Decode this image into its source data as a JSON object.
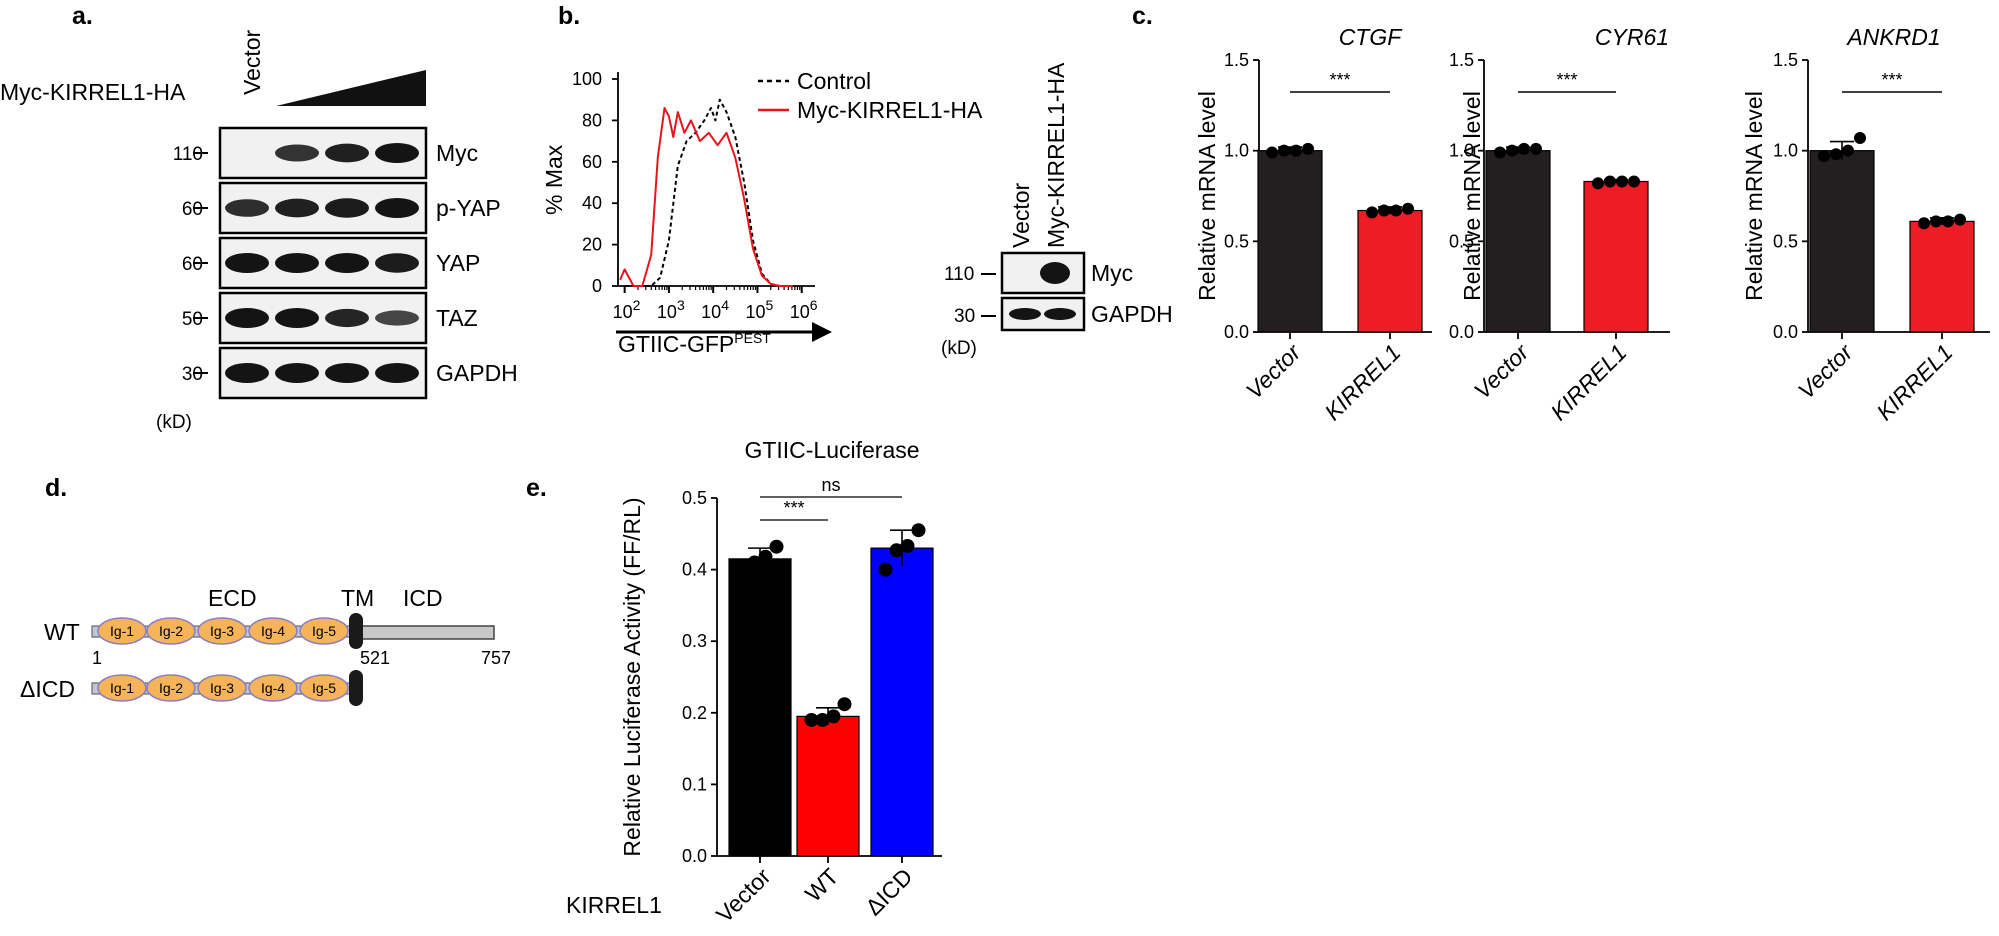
{
  "panels": {
    "a": {
      "label": "a.",
      "construct": "Myc-KIRREL1-HA",
      "vector": "Vector",
      "mw_unit": "(kD)",
      "rows": [
        {
          "mw": "110",
          "name": "Myc",
          "intensity": [
            0,
            0.75,
            0.9,
            1.0
          ]
        },
        {
          "mw": "60",
          "name": "p-YAP",
          "intensity": [
            0.8,
            0.9,
            0.95,
            1.0
          ]
        },
        {
          "mw": "60",
          "name": "YAP",
          "intensity": [
            1.0,
            1.0,
            1.0,
            0.95
          ]
        },
        {
          "mw": "50",
          "name": "TAZ",
          "intensity": [
            1.0,
            1.0,
            0.85,
            0.6
          ]
        },
        {
          "mw": "30",
          "name": "GAPDH",
          "intensity": [
            1.0,
            1.0,
            1.0,
            1.0
          ]
        }
      ]
    },
    "b": {
      "label": "b.",
      "ylabel": "% Max",
      "xlabel": "GTIIC-GFP",
      "xlabel_sup": "PEST",
      "legend": [
        "Control",
        "Myc-KIRREL1-HA"
      ],
      "yticks": [
        "0",
        "20",
        "40",
        "60",
        "80",
        "100"
      ],
      "xticks": [
        "10",
        "10",
        "10",
        "10",
        "10"
      ],
      "xticks_exp": [
        "2",
        "3",
        "4",
        "5",
        "6"
      ],
      "blot": {
        "lanes": [
          "Vector",
          "Myc-KIRREL1-HA"
        ],
        "rows": [
          {
            "mw": "110",
            "name": "Myc"
          },
          {
            "mw": "30",
            "name": "GAPDH"
          }
        ],
        "mw_unit": "(kD)"
      }
    },
    "c": {
      "label": "c."
    },
    "d": {
      "label": "d.",
      "wt": "WT",
      "dicd": "ΔICD",
      "domains": [
        "Ig-1",
        "Ig-2",
        "Ig-3",
        "Ig-4",
        "Ig-5"
      ],
      "ecd": "ECD",
      "tm": "TM",
      "icd": "ICD",
      "pos_start": "1",
      "pos_tm": "521",
      "pos_end": "757"
    },
    "e": {
      "label": "e.",
      "group_label": "KIRREL1"
    }
  },
  "colors": {
    "black_bar": "#231f20",
    "red_bar": "#ee1c25",
    "blue_bar": "#0000ff",
    "flow_red": "#e8141b",
    "ig_fill": "#f5b35a",
    "ig_stroke": "#8a7fbf"
  },
  "chart_data": [
    {
      "type": "line",
      "panel": "b",
      "title": "",
      "xlabel": "GTIIC-GFPPEST",
      "ylabel": "% Max",
      "x_scale": "log10",
      "xlim_log10": [
        1.85,
        6.3
      ],
      "ylim": [
        0,
        100
      ],
      "series": [
        {
          "name": "Control",
          "style": "dashed",
          "color": "#000000",
          "x_log10": [
            2.0,
            2.6,
            2.8,
            3.0,
            3.2,
            3.4,
            3.6,
            3.8,
            3.95,
            4.05,
            4.15,
            4.3,
            4.5,
            4.7,
            4.9,
            5.1,
            5.3,
            5.5,
            5.8
          ],
          "y": [
            0,
            0,
            4,
            22,
            58,
            70,
            74,
            80,
            86,
            80,
            90,
            84,
            72,
            50,
            22,
            6,
            1,
            0,
            0
          ]
        },
        {
          "name": "Myc-KIRREL1-HA",
          "style": "solid",
          "color": "#e8141b",
          "x_log10": [
            1.9,
            2.0,
            2.2,
            2.4,
            2.6,
            2.75,
            2.9,
            3.0,
            3.1,
            3.2,
            3.35,
            3.5,
            3.7,
            3.9,
            4.1,
            4.3,
            4.5,
            4.7,
            4.9,
            5.1,
            5.3,
            5.5,
            5.8
          ],
          "y": [
            3,
            8,
            0,
            0,
            15,
            62,
            86,
            82,
            72,
            84,
            74,
            80,
            70,
            74,
            68,
            74,
            62,
            42,
            18,
            5,
            1,
            0,
            0
          ]
        }
      ]
    },
    {
      "type": "bar",
      "panel": "c",
      "title": "CTGF",
      "ylabel": "Relative mRNA level",
      "categories": [
        "Vector",
        "KIRREL1"
      ],
      "values": [
        1.0,
        0.67
      ],
      "errors": [
        0.02,
        0.02
      ],
      "points": [
        [
          0.99,
          1.0,
          1.0,
          1.01
        ],
        [
          0.66,
          0.67,
          0.67,
          0.68
        ]
      ],
      "ylim": [
        0,
        1.5
      ],
      "yticks": [
        "0.0",
        "0.5",
        "1.0",
        "1.5"
      ],
      "significance": "***",
      "colors": [
        "#231f20",
        "#ee1c25"
      ]
    },
    {
      "type": "bar",
      "panel": "c",
      "title": "CYR61",
      "ylabel": "Relative mRNA level",
      "categories": [
        "Vector",
        "KIRREL1"
      ],
      "values": [
        1.0,
        0.83
      ],
      "errors": [
        0.02,
        0.01
      ],
      "points": [
        [
          0.99,
          1.0,
          1.01,
          1.01
        ],
        [
          0.82,
          0.83,
          0.83,
          0.83
        ]
      ],
      "ylim": [
        0,
        1.5
      ],
      "yticks": [
        "0.0",
        "0.5",
        "1.0",
        "1.5"
      ],
      "significance": "***",
      "colors": [
        "#231f20",
        "#ee1c25"
      ]
    },
    {
      "type": "bar",
      "panel": "c",
      "title": "ANKRD1",
      "ylabel": "Relative mRNA level",
      "categories": [
        "Vector",
        "KIRREL1"
      ],
      "values": [
        1.0,
        0.61
      ],
      "errors": [
        0.05,
        0.02
      ],
      "points": [
        [
          0.97,
          0.98,
          1.0,
          1.07
        ],
        [
          0.6,
          0.61,
          0.61,
          0.62
        ]
      ],
      "ylim": [
        0,
        1.5
      ],
      "yticks": [
        "0.0",
        "0.5",
        "1.0",
        "1.5"
      ],
      "significance": "***",
      "colors": [
        "#231f20",
        "#ee1c25"
      ]
    },
    {
      "type": "bar",
      "panel": "e",
      "title": "GTIIC-Luciferase",
      "ylabel": "Relative Luciferase Activity (FF/RL)",
      "categories": [
        "Vector",
        "WT",
        "ΔICD"
      ],
      "values": [
        0.415,
        0.195,
        0.43
      ],
      "errors": [
        0.015,
        0.012,
        0.025
      ],
      "points": [
        [
          0.405,
          0.41,
          0.418,
          0.432
        ],
        [
          0.19,
          0.19,
          0.195,
          0.212
        ],
        [
          0.4,
          0.427,
          0.433,
          0.455
        ]
      ],
      "ylim": [
        0,
        0.5
      ],
      "yticks": [
        "0.0",
        "0.1",
        "0.2",
        "0.3",
        "0.4",
        "0.5"
      ],
      "comparisons": [
        {
          "from": "Vector",
          "to": "WT",
          "label": "***"
        },
        {
          "from": "Vector",
          "to": "ΔICD",
          "label": "ns"
        }
      ],
      "colors": [
        "#000000",
        "#ff0000",
        "#0000ff"
      ]
    }
  ]
}
